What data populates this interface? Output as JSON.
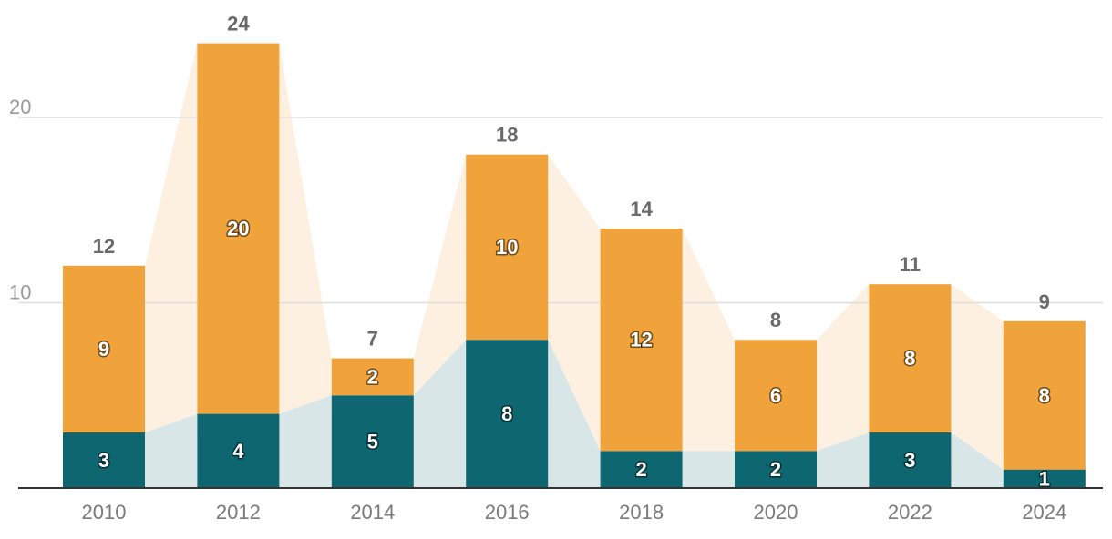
{
  "chart_data": {
    "type": "bar",
    "stacked": true,
    "categories": [
      "2010",
      "2012",
      "2014",
      "2016",
      "2018",
      "2020",
      "2022",
      "2024"
    ],
    "series": [
      {
        "values": [
          3,
          4,
          5,
          8,
          2,
          2,
          3,
          1
        ],
        "color": "#0e6670",
        "area_color": "#d9e6e8"
      },
      {
        "values": [
          9,
          20,
          2,
          10,
          12,
          6,
          8,
          8
        ],
        "color": "#f0a33a",
        "area_color": "#fdf0e1"
      }
    ],
    "totals": [
      12,
      24,
      7,
      18,
      14,
      8,
      11,
      9
    ],
    "yticks": [
      "10",
      "20"
    ],
    "ylim": [
      0,
      25
    ],
    "grid": true,
    "title": "",
    "xlabel": "",
    "ylabel": ""
  }
}
